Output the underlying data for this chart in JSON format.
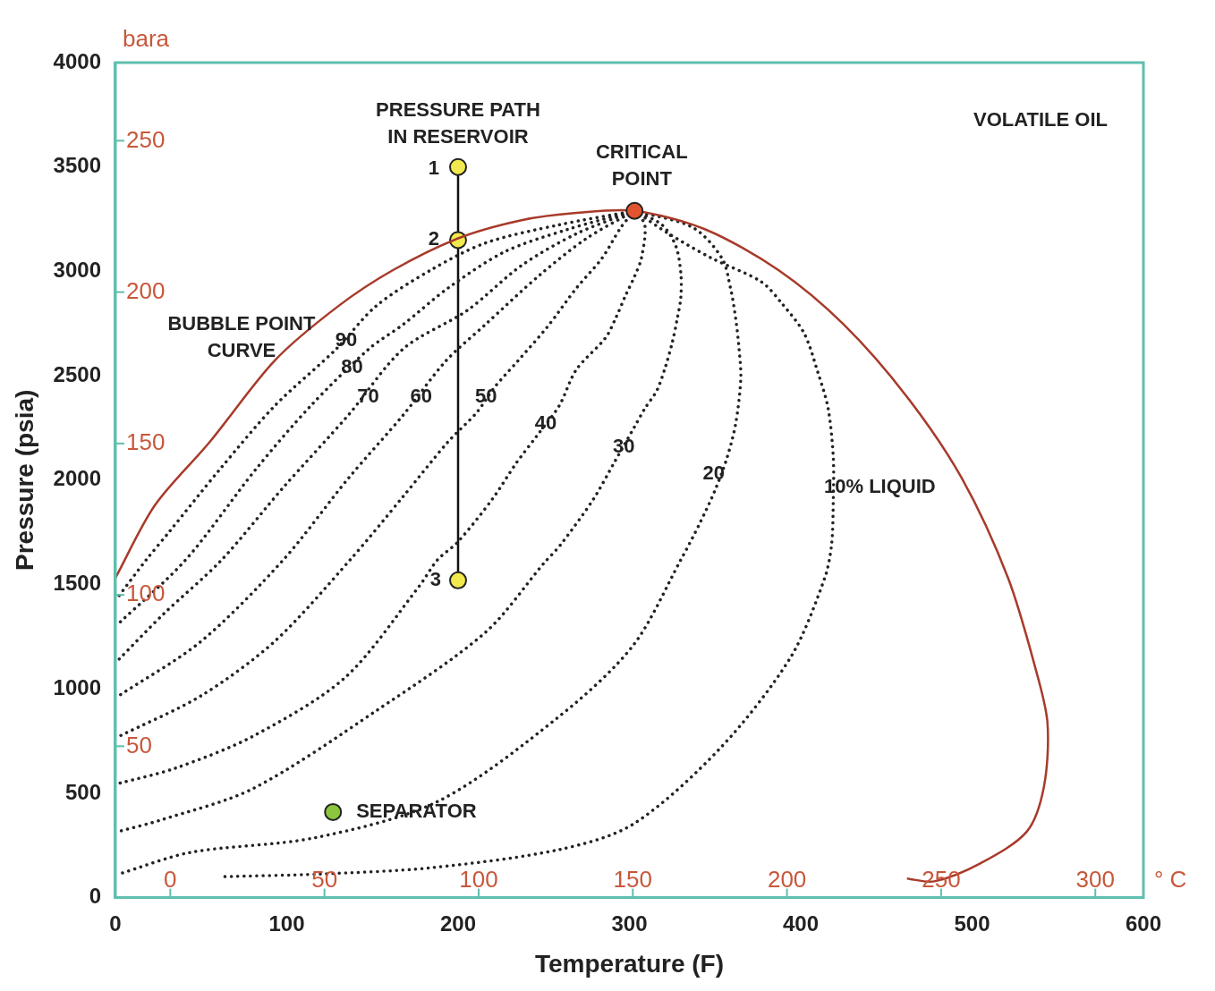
{
  "chart_data": {
    "type": "line",
    "xlabel": "Temperature (F)",
    "ylabel": "Pressure (psia)",
    "y2label": "bara",
    "x2label": "° C",
    "xlim": [
      0,
      600
    ],
    "xticks": [
      0,
      100,
      200,
      300,
      400,
      500,
      600
    ],
    "ylim": [
      0,
      4000
    ],
    "yticks": [
      0,
      500,
      1000,
      1500,
      2000,
      2500,
      3000,
      3500,
      4000
    ],
    "x2lim": [
      -17.8,
      315.6
    ],
    "x2ticks": [
      0,
      50,
      100,
      150,
      200,
      250,
      300
    ],
    "y2lim": [
      0,
      275.8
    ],
    "y2ticks": [
      50,
      100,
      150,
      200,
      250
    ],
    "legend": false,
    "series": [
      {
        "color": "#a83a2a",
        "marker": "none",
        "line_style": "solid",
        "x": [
          0,
          23,
          55,
          93,
          130,
          162,
          200,
          237,
          269,
          303,
          344,
          387,
          425,
          462,
          494,
          521,
          537,
          544,
          542,
          532,
          505,
          478,
          462
        ],
        "values": [
          1531,
          1879,
          2182,
          2573,
          2833,
          3006,
          3158,
          3245,
          3280,
          3290,
          3202,
          3006,
          2746,
          2399,
          2009,
          1531,
          1098,
          837,
          534,
          317,
          165,
          78,
          91
        ]
      },
      {
        "color": "#222222",
        "marker": "none",
        "line_style": "dotted",
        "x": [
          303,
          259,
          216,
          184,
          152,
          129,
          93,
          61,
          31,
          18,
          2
        ],
        "values": [
          3290,
          3223,
          3136,
          3006,
          2833,
          2629,
          2356,
          2052,
          1748,
          1618,
          1445
        ]
      },
      {
        "color": "#222222",
        "marker": "none",
        "line_style": "dotted",
        "x": [
          303,
          264,
          227,
          194,
          168,
          148,
          114,
          82,
          41,
          2
        ],
        "values": [
          3290,
          3201,
          3093,
          2919,
          2746,
          2629,
          2356,
          2052,
          1618,
          1314
        ]
      },
      {
        "color": "#222222",
        "marker": "none",
        "line_style": "dotted",
        "x": [
          303,
          269,
          237,
          205,
          168,
          136,
          98,
          62,
          28,
          2
        ],
        "values": [
          3290,
          3180,
          3028,
          2811,
          2629,
          2312,
          1965,
          1618,
          1358,
          1141
        ]
      },
      {
        "color": "#222222",
        "marker": "none",
        "line_style": "dotted",
        "x": [
          303,
          275,
          248,
          216,
          193,
          168,
          136,
          98,
          50,
          2
        ],
        "values": [
          3290,
          3158,
          2985,
          2746,
          2572,
          2312,
          2009,
          1618,
          1228,
          967
        ]
      },
      {
        "color": "#222222",
        "marker": "none",
        "line_style": "dotted",
        "x": [
          303,
          295,
          284,
          269,
          252,
          235,
          221,
          211,
          194,
          168,
          137,
          93,
          50,
          2
        ],
        "values": [
          3290,
          3210,
          3063,
          2919,
          2733,
          2572,
          2442,
          2325,
          2182,
          1922,
          1618,
          1228,
          967,
          772
        ]
      },
      {
        "color": "#222222",
        "marker": "none",
        "line_style": "dotted",
        "x": [
          303,
          309,
          307,
          303,
          298,
          292,
          286,
          269,
          259,
          246,
          234,
          220,
          200,
          188,
          177,
          134,
          80,
          35,
          2
        ],
        "values": [
          3290,
          3223,
          3063,
          2976,
          2889,
          2776,
          2681,
          2529,
          2356,
          2212,
          2082,
          1909,
          1705,
          1618,
          1488,
          1054,
          772,
          620,
          547
        ]
      },
      {
        "color": "#222222",
        "marker": "none",
        "line_style": "dotted",
        "x": [
          303,
          319,
          327,
          330,
          330,
          328,
          325,
          321,
          316,
          309,
          303,
          291,
          279,
          260,
          250,
          216,
          152,
          80,
          27,
          2
        ],
        "values": [
          3290,
          3223,
          3123,
          2993,
          2876,
          2776,
          2659,
          2542,
          2429,
          2343,
          2256,
          2082,
          1909,
          1692,
          1601,
          1271,
          894,
          521,
          373,
          317
        ]
      },
      {
        "color": "#222222",
        "marker": "none",
        "line_style": "dotted",
        "x": [
          303,
          337,
          354,
          359,
          362,
          364,
          365,
          362,
          357,
          350,
          341,
          330,
          302,
          259,
          188,
          116,
          44,
          2
        ],
        "values": [
          3290,
          3210,
          3063,
          2919,
          2776,
          2629,
          2486,
          2269,
          2108,
          1952,
          1792,
          1618,
          1206,
          868,
          460,
          286,
          217,
          113
        ]
      },
      {
        "color": "#222222",
        "marker": "none",
        "line_style": "dotted",
        "x": [
          303,
          323,
          348,
          377,
          389,
          402,
          410,
          416,
          419,
          419,
          418,
          414,
          394,
          353,
          302,
          259,
          184,
          119,
          61
        ],
        "values": [
          3290,
          3180,
          3063,
          2950,
          2846,
          2703,
          2516,
          2343,
          2108,
          1909,
          1692,
          1531,
          1150,
          716,
          351,
          230,
          143,
          113,
          100
        ]
      },
      {
        "color": "#111111",
        "colors": [
          "#f2e94e",
          "#f2e94e",
          "#f2e94e"
        ],
        "marker": "circle",
        "line_style": "solid",
        "x": [
          200,
          200,
          200
        ],
        "values": [
          3500,
          3150,
          1520
        ]
      },
      {
        "type": "scatter",
        "color": "#e2532f",
        "marker": "circle",
        "x": [
          303
        ],
        "values": [
          3290
        ]
      },
      {
        "type": "scatter",
        "color": "#8cc63e",
        "marker": "circle",
        "x": [
          127
        ],
        "values": [
          410
        ]
      }
    ],
    "annotations": [
      {
        "text": "PRESSURE PATH\nIN RESERVOIR",
        "x": 200,
        "y": 3500
      },
      {
        "text": "CRITICAL\nPOINT",
        "x": 303,
        "y": 3290
      },
      "VOLATILE OIL",
      {
        "text": "BUBBLE POINT\nCURVE",
        "x": 130,
        "y": 2833
      },
      {
        "text": "1",
        "x": 200,
        "y": 3500
      },
      {
        "text": "2",
        "x": 200,
        "y": 3150
      },
      {
        "text": "3",
        "x": 200,
        "y": 1520
      },
      {
        "text": "90",
        "x": 129,
        "y": 2629
      },
      {
        "text": "80",
        "x": 148,
        "y": 2629
      },
      {
        "text": "70",
        "x": 136,
        "y": 2312
      },
      {
        "text": "60",
        "x": 168,
        "y": 2312
      },
      {
        "text": "50",
        "x": 221,
        "y": 2442
      },
      {
        "text": "40",
        "x": 246,
        "y": 2212
      },
      {
        "text": "30",
        "x": 303,
        "y": 2256
      },
      {
        "text": "20",
        "x": 357,
        "y": 2108
      },
      {
        "text": "10% LIQUID",
        "x": 419,
        "y": 2108
      },
      {
        "text": "SEPARATOR",
        "x": 127,
        "y": 410
      }
    ]
  }
}
